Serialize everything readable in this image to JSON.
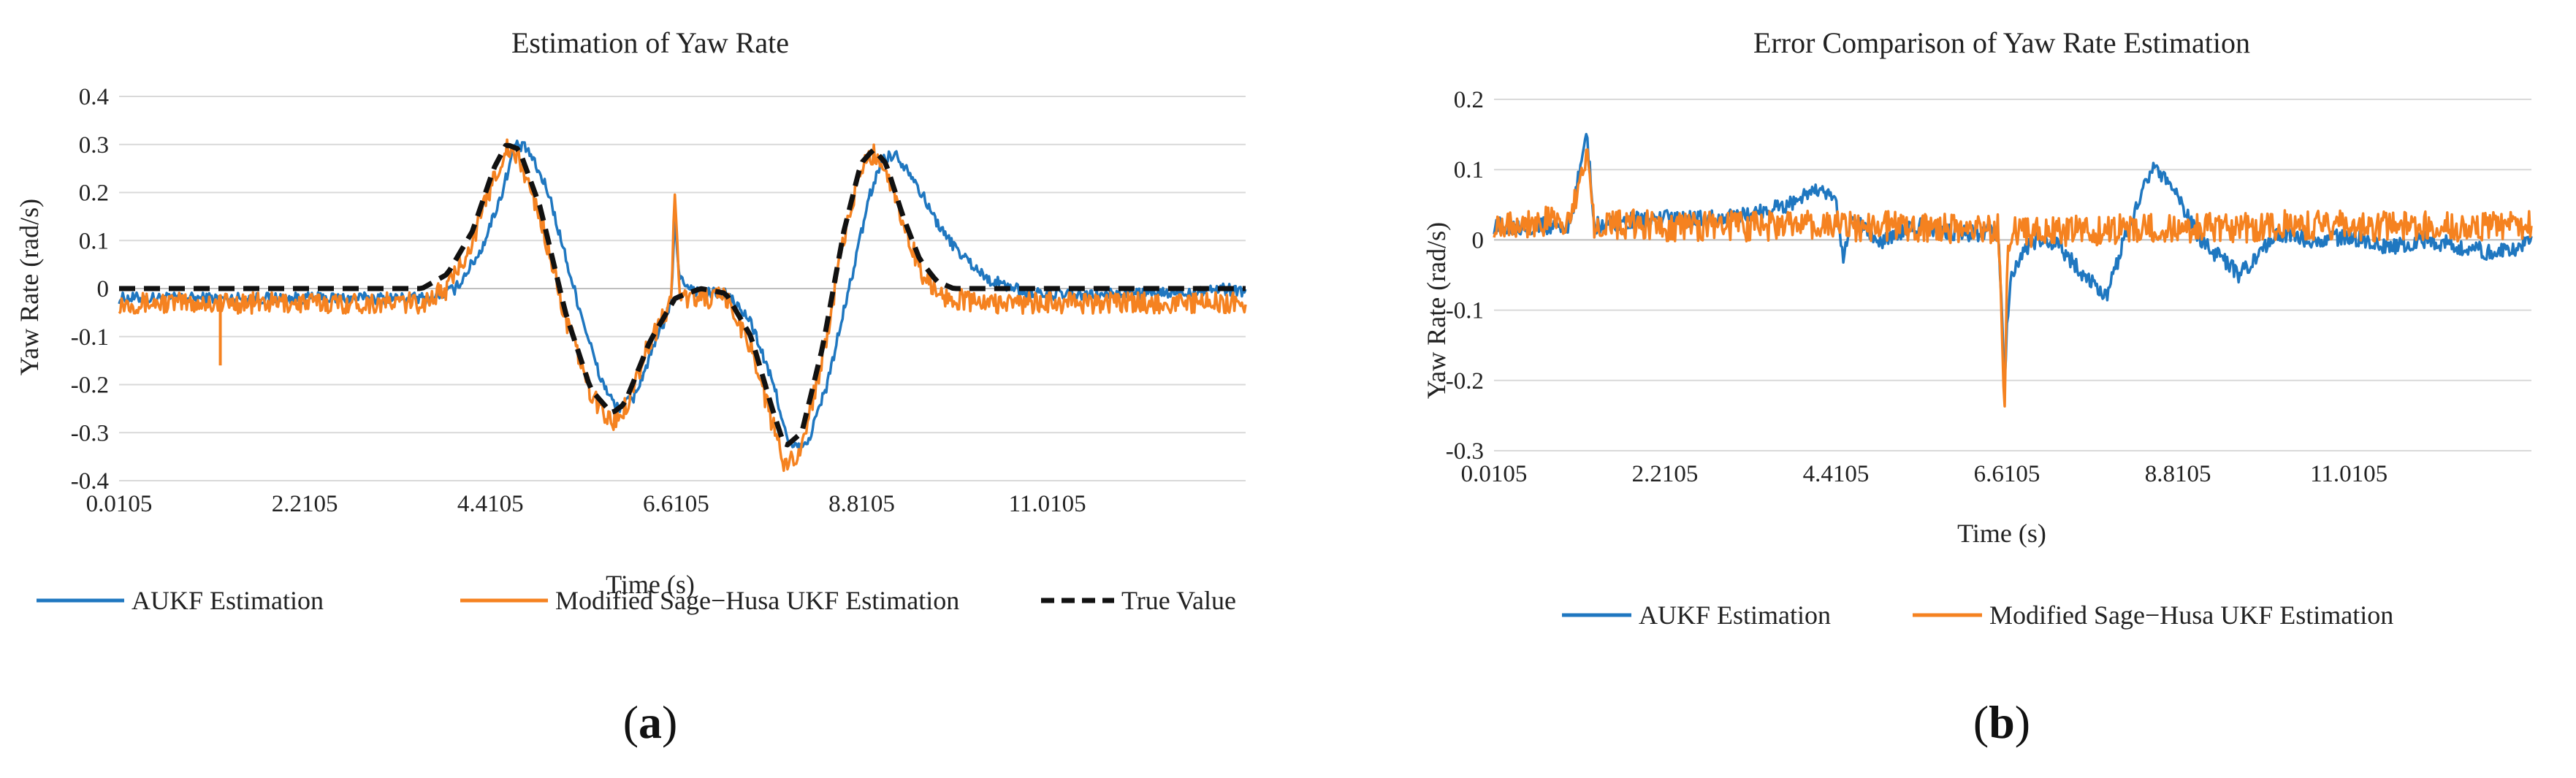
{
  "figure": {
    "panel_a_label": {
      "open": "(",
      "letter": "a",
      "close": ")"
    },
    "panel_b_label": {
      "open": "(",
      "letter": "b",
      "close": ")"
    }
  },
  "chart_data": [
    {
      "type": "line",
      "title": "Estimation of Yaw Rate",
      "xlabel": "Time (s)",
      "ylabel": "Yaw Rate (rad/s)",
      "xlim": [
        0.0105,
        13.36
      ],
      "ylim": [
        -0.4,
        0.4
      ],
      "x_ticks": [
        0.0105,
        2.2105,
        4.4105,
        6.6105,
        8.8105,
        11.0105
      ],
      "x_tick_labels": [
        "0.0105",
        "2.2105",
        "4.4105",
        "6.6105",
        "8.8105",
        "11.0105"
      ],
      "y_ticks": [
        0.4,
        0.3,
        0.2,
        0.1,
        0,
        -0.1,
        -0.2,
        -0.3,
        -0.4
      ],
      "y_tick_labels": [
        "0.4",
        "0.3",
        "0.2",
        "0.1",
        "0",
        "-0.1",
        "-0.2",
        "-0.3",
        "-0.4"
      ],
      "grid": true,
      "legend": {
        "placement": "bottom",
        "entries": [
          {
            "name": "AUKF Estimation",
            "color": "#1f77c0",
            "style": "solid"
          },
          {
            "name": "Modified Sage−Husa UKF Estimation",
            "color": "#f58220",
            "style": "solid"
          },
          {
            "name": "True Value",
            "color": "#111111",
            "style": "dashed"
          }
        ]
      },
      "series": [
        {
          "name": "True Value",
          "color": "#111111",
          "style": "dashed",
          "x": [
            0.0105,
            3.6,
            3.9,
            4.2,
            4.45,
            4.6,
            4.75,
            5.0,
            5.3,
            5.6,
            5.85,
            6.0,
            6.3,
            6.6,
            6.9,
            7.2,
            7.5,
            7.75,
            7.9,
            8.1,
            8.35,
            8.6,
            8.8,
            8.95,
            9.1,
            9.3,
            9.5,
            9.7,
            9.9,
            10.2,
            13.36
          ],
          "values": [
            0,
            0,
            0.03,
            0.12,
            0.25,
            0.3,
            0.29,
            0.17,
            -0.05,
            -0.21,
            -0.26,
            -0.24,
            -0.11,
            -0.02,
            0,
            -0.01,
            -0.1,
            -0.25,
            -0.33,
            -0.3,
            -0.12,
            0.12,
            0.26,
            0.29,
            0.26,
            0.15,
            0.06,
            0.015,
            0,
            0,
            0
          ]
        },
        {
          "name": "AUKF Estimation",
          "color": "#1f77c0",
          "style": "solid",
          "x": [
            0.0105,
            3.7,
            4.0,
            4.3,
            4.55,
            4.7,
            4.85,
            5.1,
            5.4,
            5.7,
            5.9,
            6.1,
            6.4,
            6.55,
            6.6,
            6.65,
            6.9,
            7.2,
            7.5,
            7.8,
            7.95,
            8.15,
            8.4,
            8.7,
            8.9,
            9.05,
            9.2,
            9.4,
            9.6,
            9.8,
            10.0,
            10.3,
            10.8,
            11.5,
            12.0,
            12.5,
            13.0,
            13.36
          ],
          "values": [
            -0.02,
            -0.02,
            0.0,
            0.08,
            0.2,
            0.3,
            0.29,
            0.2,
            0.0,
            -0.18,
            -0.25,
            -0.23,
            -0.1,
            -0.03,
            0.15,
            0.02,
            -0.01,
            -0.01,
            -0.07,
            -0.22,
            -0.33,
            -0.33,
            -0.2,
            0.03,
            0.19,
            0.27,
            0.28,
            0.24,
            0.17,
            0.11,
            0.07,
            0.02,
            -0.01,
            -0.015,
            -0.01,
            -0.01,
            0.0,
            -0.005
          ]
        },
        {
          "name": "Modified Sage−Husa UKF Estimation",
          "color": "#f58220",
          "style": "solid",
          "x": [
            0.0105,
            3.6,
            3.9,
            4.2,
            4.45,
            4.6,
            4.75,
            5.0,
            5.3,
            5.6,
            5.85,
            6.0,
            6.3,
            6.55,
            6.6,
            6.65,
            6.9,
            7.2,
            7.5,
            7.75,
            7.9,
            8.1,
            8.35,
            8.6,
            8.8,
            8.95,
            9.1,
            9.3,
            9.5,
            9.7,
            9.9,
            10.2,
            13.36
          ],
          "values": [
            -0.03,
            -0.03,
            0.0,
            0.1,
            0.23,
            0.29,
            0.27,
            0.15,
            -0.06,
            -0.22,
            -0.28,
            -0.25,
            -0.11,
            -0.03,
            0.22,
            -0.02,
            -0.02,
            -0.02,
            -0.12,
            -0.28,
            -0.37,
            -0.33,
            -0.14,
            0.1,
            0.25,
            0.28,
            0.25,
            0.14,
            0.04,
            -0.01,
            -0.02,
            -0.03,
            -0.03
          ],
          "spikes": [
            {
              "x": 1.21,
              "value": -0.16
            },
            {
              "x": 6.6,
              "value": 0.22
            }
          ]
        }
      ]
    },
    {
      "type": "line",
      "title": "Error Comparison of Yaw Rate Estimation",
      "xlabel": "Time (s)",
      "ylabel": "Yaw Rate (rad/s)",
      "xlim": [
        0.0105,
        13.36
      ],
      "ylim": [
        -0.3,
        0.2
      ],
      "x_ticks": [
        0.0105,
        2.2105,
        4.4105,
        6.6105,
        8.8105,
        11.0105
      ],
      "x_tick_labels": [
        "0.0105",
        "2.2105",
        "4.4105",
        "6.6105",
        "8.8105",
        "11.0105"
      ],
      "y_ticks": [
        0.2,
        0.1,
        0,
        -0.1,
        -0.2,
        -0.3
      ],
      "y_tick_labels": [
        "0.2",
        "0.1",
        "0",
        "-0.1",
        "-0.2",
        "-0.3"
      ],
      "grid": true,
      "legend": {
        "placement": "bottom",
        "entries": [
          {
            "name": "AUKF Estimation",
            "color": "#1f77c0",
            "style": "solid"
          },
          {
            "name": "Modified Sage−Husa UKF Estimation",
            "color": "#f58220",
            "style": "solid"
          }
        ]
      },
      "series": [
        {
          "name": "AUKF Estimation",
          "color": "#1f77c0",
          "style": "solid",
          "x": [
            0.0105,
            1.0,
            1.2,
            1.3,
            2.0,
            3.0,
            3.8,
            4.1,
            4.4,
            4.5,
            4.6,
            5.0,
            5.5,
            6.0,
            6.5,
            6.58,
            6.6,
            6.65,
            6.8,
            7.0,
            7.3,
            7.6,
            7.9,
            8.2,
            8.5,
            8.8,
            9.1,
            9.4,
            9.6,
            9.8,
            10.1,
            10.5,
            11.0,
            11.5,
            12.0,
            12.5,
            12.9,
            13.2,
            13.36
          ],
          "values": [
            0.02,
            0.02,
            0.16,
            0.02,
            0.03,
            0.03,
            0.05,
            0.07,
            0.06,
            -0.03,
            0.03,
            0.0,
            0.02,
            0.01,
            0.01,
            -0.2,
            -0.15,
            -0.06,
            -0.02,
            0.0,
            -0.01,
            -0.05,
            -0.08,
            0.03,
            0.11,
            0.06,
            0.0,
            -0.03,
            -0.05,
            -0.03,
            0.01,
            0.0,
            0.005,
            -0.01,
            0.0,
            -0.01,
            -0.02,
            -0.01,
            0.0
          ]
        },
        {
          "name": "Modified Sage−Husa UKF Estimation",
          "color": "#f58220",
          "style": "solid",
          "x": [
            0.0105,
            1.0,
            1.2,
            1.3,
            2.0,
            3.0,
            4.0,
            5.0,
            6.0,
            6.5,
            6.58,
            6.62,
            6.7,
            7.0,
            8.0,
            9.0,
            10.0,
            11.0,
            12.0,
            13.36
          ],
          "values": [
            0.025,
            0.025,
            0.13,
            0.025,
            0.02,
            0.02,
            0.02,
            0.02,
            0.015,
            0.015,
            -0.24,
            -0.02,
            0.01,
            0.01,
            0.015,
            0.015,
            0.02,
            0.02,
            0.02,
            0.02
          ],
          "spikes": [
            {
              "x": 1.21,
              "value": 0.13
            },
            {
              "x": 6.58,
              "value": -0.24
            }
          ]
        }
      ]
    }
  ]
}
